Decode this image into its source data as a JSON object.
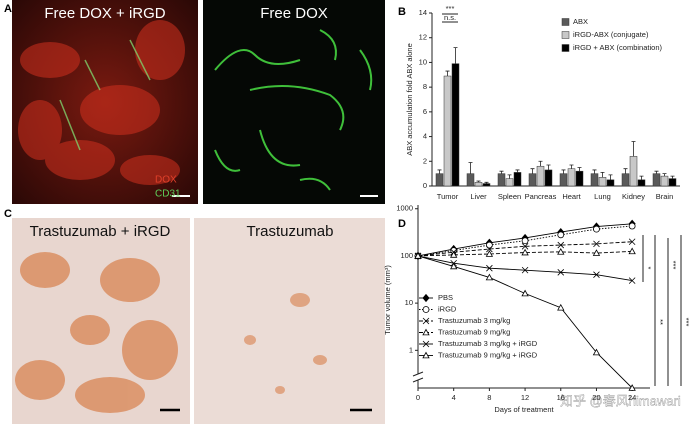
{
  "panels": {
    "a": {
      "label": "A",
      "left_title": "Free DOX + iRGD",
      "right_title": "Free DOX",
      "stain_1": "DOX",
      "stain_2": "CD31"
    },
    "b_label": "B",
    "c": {
      "label": "C",
      "left_title": "Trastuzumab + iRGD",
      "right_title": "Trastuzumab"
    },
    "d_label": "D",
    "watermark": "知乎 @春风himawari"
  },
  "chart_data": [
    {
      "type": "bar",
      "y_label": "ABX accumulation fold ABX alone",
      "categories": [
        "Tumor",
        "Liver",
        "Spleen",
        "Pancreas",
        "Heart",
        "Lung",
        "Kidney",
        "Brain"
      ],
      "series": [
        {
          "name": "ABX",
          "color": "#5a5a5a",
          "values": [
            1.0,
            1.0,
            1.0,
            1.0,
            1.0,
            1.0,
            1.0,
            1.0
          ],
          "errors": [
            0.3,
            0.9,
            0.2,
            0.4,
            0.3,
            0.3,
            0.4,
            0.2
          ]
        },
        {
          "name": "iRGD-ABX (conjugate)",
          "color": "#c8c8c8",
          "values": [
            8.9,
            0.3,
            0.6,
            1.6,
            1.4,
            0.7,
            2.4,
            0.8
          ],
          "errors": [
            0.4,
            0.1,
            0.3,
            0.4,
            0.3,
            0.4,
            1.2,
            0.2
          ]
        },
        {
          "name": "iRGD + ABX (combination)",
          "color": "#000000",
          "values": [
            9.9,
            0.2,
            1.1,
            1.3,
            1.2,
            0.5,
            0.5,
            0.6
          ],
          "errors": [
            1.3,
            0.1,
            0.2,
            0.4,
            0.3,
            0.4,
            0.3,
            0.2
          ]
        }
      ],
      "ylim": [
        0,
        14
      ],
      "yticks": [
        0,
        2,
        4,
        6,
        8,
        10,
        12,
        14
      ],
      "annotations": [
        "***",
        "n.s."
      ]
    },
    {
      "type": "line",
      "x_label": "Days of treatment",
      "y_label": "Tumor volume (mm³)",
      "x": [
        0,
        4,
        8,
        12,
        16,
        20,
        24
      ],
      "xlim": [
        0,
        26
      ],
      "xticks": [
        0,
        4,
        8,
        12,
        16,
        20,
        24
      ],
      "ylim": [
        0.3,
        1200
      ],
      "log_y": true,
      "yticks": [
        1,
        10,
        100,
        1000
      ],
      "series": [
        {
          "name": "PBS",
          "color": "#000000",
          "marker": "diamond",
          "marker_fill": true,
          "dash": "solid",
          "values": [
            100,
            140,
            190,
            240,
            320,
            420,
            480
          ]
        },
        {
          "name": "iRGD",
          "color": "#000000",
          "marker": "circle",
          "marker_fill": false,
          "dash": "dotted",
          "values": [
            100,
            130,
            170,
            210,
            280,
            370,
            430
          ]
        },
        {
          "name": "Trastuzumab 3 mg/kg",
          "color": "#000000",
          "marker": "x",
          "marker_fill": false,
          "dash": "dashed",
          "values": [
            100,
            120,
            140,
            160,
            170,
            180,
            200
          ]
        },
        {
          "name": "Trastuzumab 9 mg/kg",
          "color": "#000000",
          "marker": "triangle",
          "marker_fill": false,
          "dash": "dashed",
          "values": [
            100,
            105,
            110,
            118,
            122,
            115,
            125
          ]
        },
        {
          "name": "Trastuzumab 3 mg/kg + iRGD",
          "color": "#000000",
          "marker": "x",
          "marker_fill": false,
          "dash": "solid",
          "values": [
            100,
            70,
            55,
            50,
            45,
            40,
            30
          ]
        },
        {
          "name": "Trastuzumab 9 mg/kg + iRGD",
          "color": "#000000",
          "marker": "triangle",
          "marker_fill": false,
          "dash": "solid",
          "values": [
            100,
            60,
            35,
            16,
            8,
            0.9,
            0
          ]
        }
      ],
      "annotations": [
        "*",
        "**",
        "***",
        "***"
      ]
    }
  ]
}
